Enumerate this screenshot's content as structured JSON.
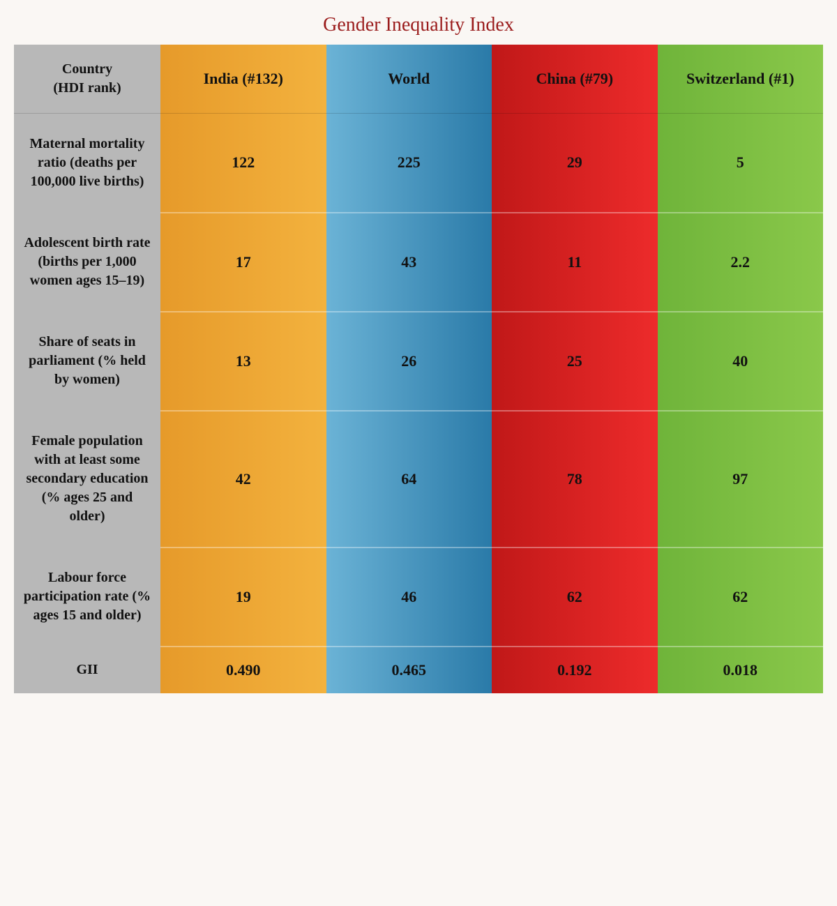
{
  "title": "Gender Inequality Index",
  "title_color": "#9a1b1b",
  "background_color": "#faf7f4",
  "rowhead_bg": "#b8b8b8",
  "font_family": "Georgia, serif",
  "title_fontsize": 28,
  "header_fontsize": 22,
  "rowlabel_fontsize": 20,
  "value_fontsize": 22,
  "columns": [
    {
      "label": "Country\n(HDI rank)",
      "is_rowhead": true
    },
    {
      "label": "India (#132)",
      "grad_from": "#e69a2a",
      "grad_to": "#f3b23e"
    },
    {
      "label": "World",
      "grad_from": "#6bb3d6",
      "grad_to": "#2a7aa8"
    },
    {
      "label": "China (#79)",
      "grad_from": "#c01818",
      "grad_to": "#ed2b2b"
    },
    {
      "label": "Switzerland (#1)",
      "grad_from": "#6fb43a",
      "grad_to": "#8ac84a"
    }
  ],
  "rows": [
    {
      "label": "Maternal mortality ratio (deaths per 100,000 live births)",
      "values": [
        "122",
        "225",
        "29",
        "5"
      ]
    },
    {
      "label": "Adolescent birth rate (births per 1,000 women ages 15–19)",
      "values": [
        "17",
        "43",
        "11",
        "2.2"
      ]
    },
    {
      "label": "Share of seats in parliament (% held\nby women)",
      "values": [
        "13",
        "26",
        "25",
        "40"
      ]
    },
    {
      "label": "Female population with at least some secondary education (% ages 25 and older)",
      "values": [
        "42",
        "64",
        "78",
        "97"
      ]
    },
    {
      "label": "Labour force participation rate (% ages 15 and older)",
      "values": [
        "19",
        "46",
        "62",
        "62"
      ]
    },
    {
      "label": "GII",
      "values": [
        "0.490",
        "0.465",
        "0.192",
        "0.018"
      ],
      "is_gii": true
    }
  ]
}
